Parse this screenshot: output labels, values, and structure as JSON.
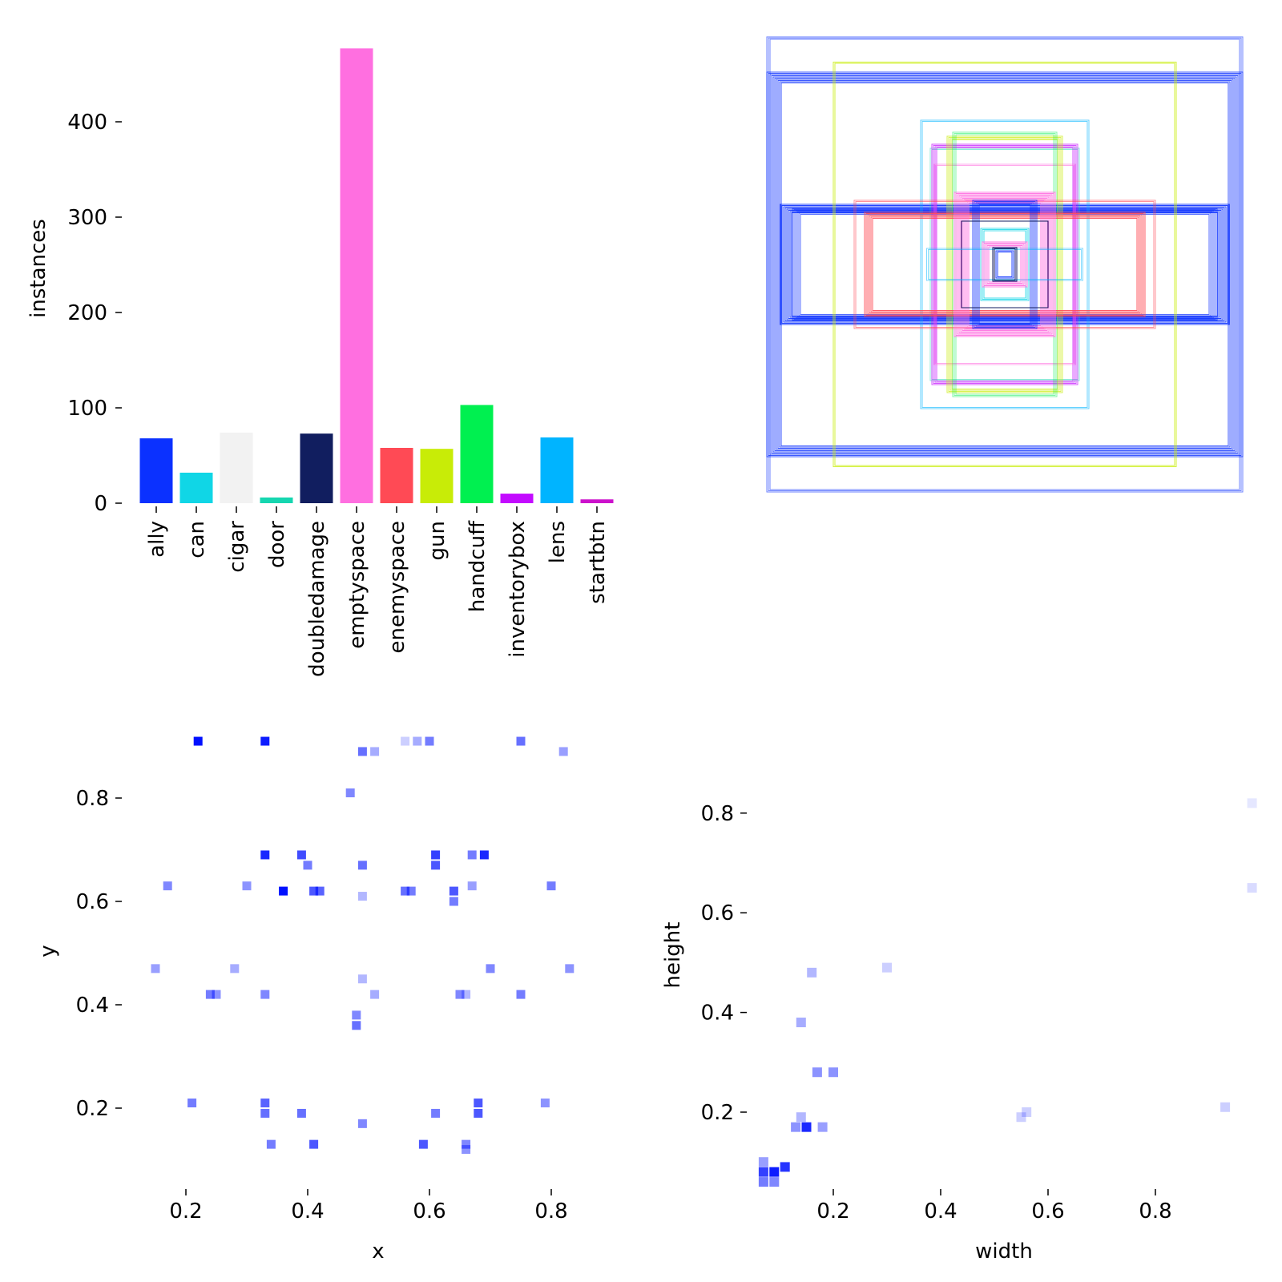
{
  "chart_data": [
    {
      "type": "bar",
      "ylabel": "instances",
      "xlabel": "",
      "ylim": [
        0,
        478
      ],
      "yticks": [
        0,
        100,
        200,
        300,
        400
      ],
      "categories": [
        "ally",
        "can",
        "cigar",
        "door",
        "doubledamage",
        "emptyspace",
        "enemyspace",
        "gun",
        "handcuff",
        "inventorybox",
        "lens",
        "startbtn"
      ],
      "values": [
        68,
        32,
        74,
        6,
        73,
        477,
        58,
        57,
        103,
        10,
        69,
        4
      ],
      "colors": [
        "#0b31ff",
        "#10d6e6",
        "#f2f2f2",
        "#16d6b0",
        "#111e5f",
        "#ff6fe0",
        "#ff4a55",
        "#c8ec07",
        "#00f050",
        "#c30bff",
        "#00b4ff",
        "#cc11cc"
      ]
    },
    {
      "type": "other",
      "description_of_content": "overlaid bounding box outlines, centered, per class color",
      "class_colors": [
        "#0b31ff",
        "#10d6e6",
        "#f2f2f2",
        "#16d6b0",
        "#111e5f",
        "#ff6fe0",
        "#ff4a55",
        "#c8ec07",
        "#00f050",
        "#c30bff",
        "#00b4ff",
        "#cc11cc"
      ]
    },
    {
      "type": "heatmap",
      "xlabel": "x",
      "ylabel": "y",
      "xticks": [
        0.2,
        0.4,
        0.6,
        0.8
      ],
      "yticks": [
        0.2,
        0.4,
        0.6,
        0.8
      ],
      "xlim": [
        0.1,
        0.93
      ],
      "ylim": [
        0.02,
        0.93
      ],
      "color": "#0010ff",
      "cells": [
        [
          0.22,
          0.91,
          1.0
        ],
        [
          0.33,
          0.91,
          0.95
        ],
        [
          0.56,
          0.91,
          0.2
        ],
        [
          0.58,
          0.91,
          0.35
        ],
        [
          0.6,
          0.91,
          0.55
        ],
        [
          0.75,
          0.91,
          0.6
        ],
        [
          0.49,
          0.89,
          0.6
        ],
        [
          0.51,
          0.89,
          0.35
        ],
        [
          0.82,
          0.89,
          0.4
        ],
        [
          0.47,
          0.81,
          0.5
        ],
        [
          0.33,
          0.69,
          0.9
        ],
        [
          0.39,
          0.69,
          0.75
        ],
        [
          0.61,
          0.69,
          0.8
        ],
        [
          0.67,
          0.69,
          0.55
        ],
        [
          0.69,
          0.69,
          0.9
        ],
        [
          0.49,
          0.67,
          0.6
        ],
        [
          0.4,
          0.67,
          0.55
        ],
        [
          0.61,
          0.67,
          0.7
        ],
        [
          0.17,
          0.63,
          0.5
        ],
        [
          0.3,
          0.63,
          0.45
        ],
        [
          0.36,
          0.62,
          1.0
        ],
        [
          0.41,
          0.62,
          0.7
        ],
        [
          0.42,
          0.62,
          0.65
        ],
        [
          0.56,
          0.62,
          0.6
        ],
        [
          0.57,
          0.62,
          0.55
        ],
        [
          0.64,
          0.62,
          0.7
        ],
        [
          0.64,
          0.6,
          0.55
        ],
        [
          0.67,
          0.63,
          0.4
        ],
        [
          0.8,
          0.63,
          0.55
        ],
        [
          0.49,
          0.61,
          0.3
        ],
        [
          0.15,
          0.47,
          0.4
        ],
        [
          0.28,
          0.47,
          0.35
        ],
        [
          0.7,
          0.47,
          0.5
        ],
        [
          0.83,
          0.47,
          0.45
        ],
        [
          0.49,
          0.45,
          0.3
        ],
        [
          0.24,
          0.42,
          0.55
        ],
        [
          0.25,
          0.42,
          0.45
        ],
        [
          0.33,
          0.42,
          0.5
        ],
        [
          0.51,
          0.42,
          0.35
        ],
        [
          0.65,
          0.42,
          0.5
        ],
        [
          0.66,
          0.42,
          0.3
        ],
        [
          0.75,
          0.42,
          0.55
        ],
        [
          0.48,
          0.38,
          0.5
        ],
        [
          0.48,
          0.36,
          0.6
        ],
        [
          0.21,
          0.21,
          0.55
        ],
        [
          0.33,
          0.21,
          0.65
        ],
        [
          0.33,
          0.19,
          0.6
        ],
        [
          0.39,
          0.19,
          0.6
        ],
        [
          0.61,
          0.19,
          0.55
        ],
        [
          0.68,
          0.21,
          0.7
        ],
        [
          0.68,
          0.19,
          0.7
        ],
        [
          0.79,
          0.21,
          0.45
        ],
        [
          0.49,
          0.17,
          0.5
        ],
        [
          0.34,
          0.13,
          0.55
        ],
        [
          0.41,
          0.13,
          0.7
        ],
        [
          0.59,
          0.13,
          0.7
        ],
        [
          0.66,
          0.13,
          0.5
        ],
        [
          0.66,
          0.12,
          0.45
        ]
      ]
    },
    {
      "type": "heatmap",
      "xlabel": "width",
      "ylabel": "height",
      "xticks": [
        0.2,
        0.4,
        0.6,
        0.8
      ],
      "yticks": [
        0.2,
        0.4,
        0.6,
        0.8
      ],
      "xlim": [
        0.04,
        0.99
      ],
      "ylim": [
        0.02,
        0.93
      ],
      "color": "#0010ff",
      "cells": [
        [
          0.07,
          0.08,
          0.8
        ],
        [
          0.09,
          0.08,
          0.95
        ],
        [
          0.11,
          0.09,
          0.85
        ],
        [
          0.07,
          0.06,
          0.55
        ],
        [
          0.09,
          0.06,
          0.5
        ],
        [
          0.07,
          0.1,
          0.4
        ],
        [
          0.15,
          0.17,
          0.9
        ],
        [
          0.13,
          0.17,
          0.45
        ],
        [
          0.18,
          0.17,
          0.4
        ],
        [
          0.14,
          0.19,
          0.3
        ],
        [
          0.17,
          0.28,
          0.45
        ],
        [
          0.2,
          0.28,
          0.45
        ],
        [
          0.14,
          0.38,
          0.35
        ],
        [
          0.16,
          0.48,
          0.3
        ],
        [
          0.3,
          0.49,
          0.2
        ],
        [
          0.55,
          0.19,
          0.2
        ],
        [
          0.56,
          0.2,
          0.2
        ],
        [
          0.93,
          0.21,
          0.2
        ],
        [
          0.98,
          0.65,
          0.15
        ],
        [
          0.98,
          0.82,
          0.1
        ]
      ]
    }
  ]
}
